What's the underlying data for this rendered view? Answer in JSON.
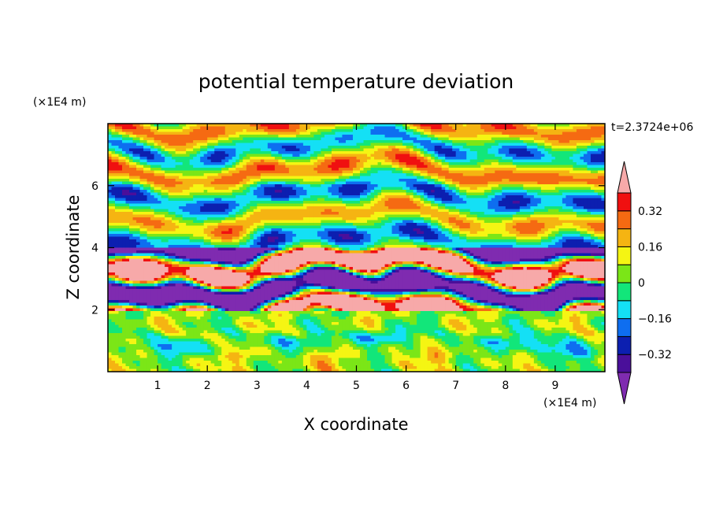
{
  "chart_data": {
    "type": "heatmap",
    "title": "potential temperature deviation",
    "time_label": "t=2.3724e+06",
    "xlabel": "X coordinate",
    "ylabel": "Z coordinate",
    "x_unit": "(×1E4 m)",
    "y_unit": "(×1E4 m)",
    "xlim": [
      0,
      10
    ],
    "ylim": [
      0,
      8
    ],
    "x_ticks": [
      1,
      2,
      3,
      4,
      5,
      6,
      7,
      8,
      9
    ],
    "y_ticks": [
      2,
      4,
      6
    ],
    "colorbar": {
      "levels": [
        -0.4,
        -0.32,
        -0.24,
        -0.16,
        -0.08,
        0,
        0.08,
        0.16,
        0.24,
        0.32,
        0.4
      ],
      "labels": [
        "0.32",
        "0.16",
        "0",
        "−0.16",
        "−0.32"
      ],
      "label_values": [
        0.32,
        0.16,
        0,
        -0.16,
        -0.32
      ],
      "colors": [
        "#7f2bb0",
        "#4a0f9a",
        "#0c1fb0",
        "#0e6ef0",
        "#14e0f5",
        "#12e67a",
        "#7be617",
        "#f5f513",
        "#f5b412",
        "#f56a12",
        "#f01010",
        "#f7a9a9"
      ],
      "extend": "both"
    }
  }
}
